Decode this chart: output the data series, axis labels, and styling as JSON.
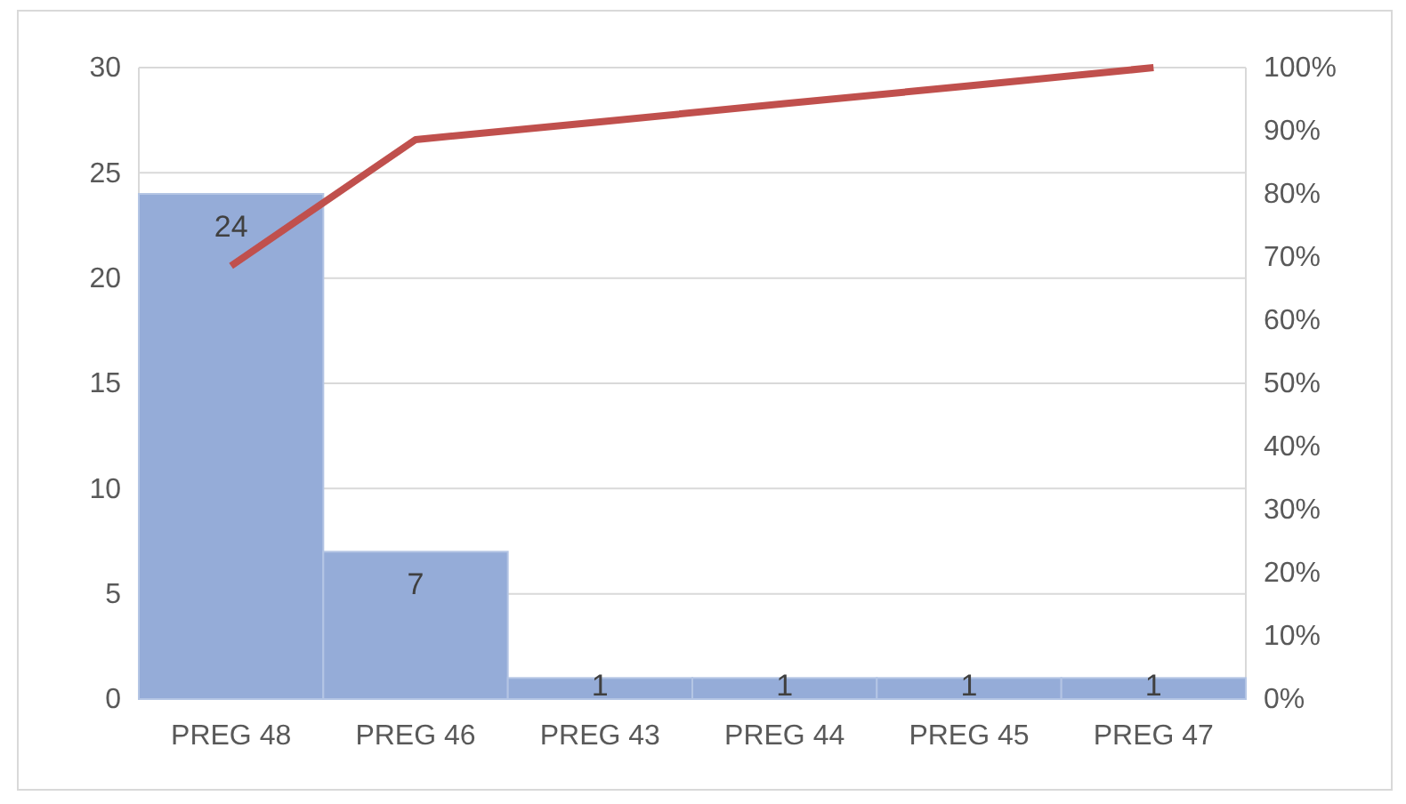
{
  "chart_data": {
    "type": "bar",
    "categories": [
      "PREG 48",
      "PREG 46",
      "PREG 43",
      "PREG 44",
      "PREG 45",
      "PREG 47"
    ],
    "series": [
      {
        "color": "#95acd8",
        "values": [
          24,
          7,
          1,
          1,
          1,
          1
        ],
        "value_labels": [
          "24",
          "7",
          "1",
          "1",
          "1",
          "1"
        ]
      },
      {
        "type": "line",
        "axis": "y2",
        "color": "#c0504d",
        "values": [
          68.6,
          88.6,
          91.4,
          94.3,
          97.1,
          100
        ]
      }
    ],
    "ylim": [
      0,
      30
    ],
    "yticks": [
      0,
      5,
      10,
      15,
      20,
      25,
      30
    ],
    "y2lim": [
      0,
      100
    ],
    "y2ticks": [
      {
        "value": 0,
        "label": "0%"
      },
      {
        "value": 10,
        "label": "10%"
      },
      {
        "value": 20,
        "label": "20%"
      },
      {
        "value": 30,
        "label": "30%"
      },
      {
        "value": 40,
        "label": "40%"
      },
      {
        "value": 50,
        "label": "50%"
      },
      {
        "value": 60,
        "label": "60%"
      },
      {
        "value": 70,
        "label": "70%"
      },
      {
        "value": 80,
        "label": "80%"
      },
      {
        "value": 90,
        "label": "90%"
      },
      {
        "value": 100,
        "label": "100%"
      }
    ],
    "grid": "y",
    "marker": "none",
    "line_style": "solid"
  }
}
